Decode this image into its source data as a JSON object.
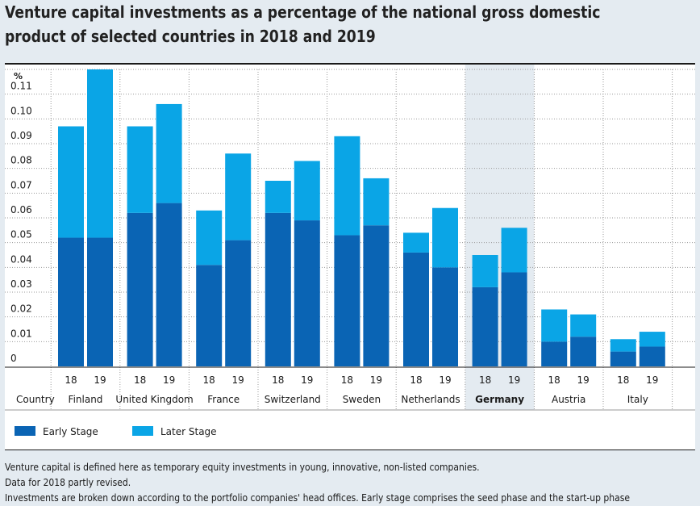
{
  "title_lines": [
    "Venture capital investments as a percentage of the national gross domestic",
    "product of selected countries in 2018 and 2019"
  ],
  "chart_data": {
    "type": "bar",
    "stacked": true,
    "y_unit_label": "%",
    "ylim": [
      0,
      0.12
    ],
    "y_ticks": [
      "0",
      "0.01",
      "0.02",
      "0.03",
      "0.04",
      "0.05",
      "0.06",
      "0.07",
      "0.08",
      "0.09",
      "0.10",
      "0.11"
    ],
    "x_row_label": "Country",
    "highlight_country": "Germany",
    "colors": {
      "early": "#0a64b4",
      "later": "#0aa5e6",
      "highlight_bg": "#e4ebf1",
      "grid": "#9a9a9a"
    },
    "legend": [
      {
        "key": "early",
        "label": "Early Stage"
      },
      {
        "key": "later",
        "label": "Later Stage"
      }
    ],
    "countries": [
      {
        "name": "Finland",
        "bars": [
          {
            "year": "18",
            "early": 0.052,
            "later": 0.045
          },
          {
            "year": "19",
            "early": 0.052,
            "later": 0.068
          }
        ]
      },
      {
        "name": "United Kingdom",
        "bars": [
          {
            "year": "18",
            "early": 0.062,
            "later": 0.035
          },
          {
            "year": "19",
            "early": 0.066,
            "later": 0.04
          }
        ]
      },
      {
        "name": "France",
        "bars": [
          {
            "year": "18",
            "early": 0.041,
            "later": 0.022
          },
          {
            "year": "19",
            "early": 0.051,
            "later": 0.035
          }
        ]
      },
      {
        "name": "Switzerland",
        "bars": [
          {
            "year": "18",
            "early": 0.062,
            "later": 0.013
          },
          {
            "year": "19",
            "early": 0.059,
            "later": 0.024
          }
        ]
      },
      {
        "name": "Sweden",
        "bars": [
          {
            "year": "18",
            "early": 0.053,
            "later": 0.04
          },
          {
            "year": "19",
            "early": 0.057,
            "later": 0.019
          }
        ]
      },
      {
        "name": "Netherlands",
        "bars": [
          {
            "year": "18",
            "early": 0.046,
            "later": 0.008
          },
          {
            "year": "19",
            "early": 0.04,
            "later": 0.024
          }
        ]
      },
      {
        "name": "Germany",
        "bars": [
          {
            "year": "18",
            "early": 0.032,
            "later": 0.013
          },
          {
            "year": "19",
            "early": 0.038,
            "later": 0.018
          }
        ]
      },
      {
        "name": "Austria",
        "bars": [
          {
            "year": "18",
            "early": 0.01,
            "later": 0.013
          },
          {
            "year": "19",
            "early": 0.012,
            "later": 0.009
          }
        ]
      },
      {
        "name": "Italy",
        "bars": [
          {
            "year": "18",
            "early": 0.006,
            "later": 0.005
          },
          {
            "year": "19",
            "early": 0.008,
            "later": 0.006
          }
        ]
      }
    ]
  },
  "notes": [
    "Venture capital is defined here as temporary equity investments in young, innovative, non-listed companies.",
    "Data for 2018 partly revised.",
    "Investments are broken down according to the portfolio companies' head offices. Early stage comprises the seed phase and the start-up phase"
  ]
}
